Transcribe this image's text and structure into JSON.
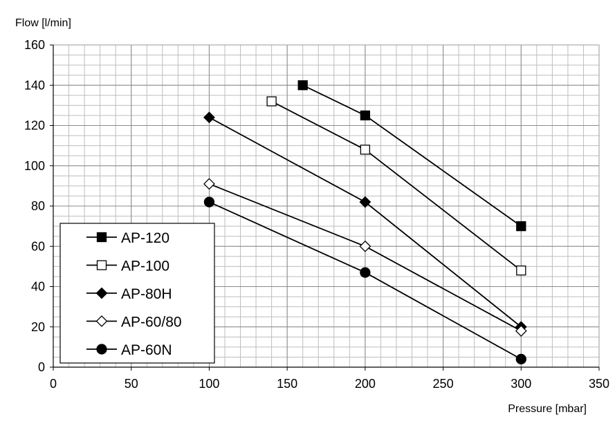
{
  "chart_data": {
    "type": "line",
    "title": "",
    "xlabel": "Pressure [mbar]",
    "ylabel": "Flow [l/min]",
    "xlim": [
      0,
      350
    ],
    "ylim": [
      0,
      160
    ],
    "x_ticks": [
      0,
      50,
      100,
      150,
      200,
      250,
      300,
      350
    ],
    "y_ticks": [
      0,
      20,
      40,
      60,
      80,
      100,
      120,
      140,
      160
    ],
    "x_tick_labels": [
      "0",
      "50",
      "100",
      "150",
      "200",
      "250",
      "300",
      "350"
    ],
    "y_tick_labels": [
      "0",
      "20",
      "40",
      "60",
      "80",
      "100",
      "120",
      "140",
      "160"
    ],
    "minor_grid_step_x": 10,
    "minor_grid_step_y": 5,
    "grid": true,
    "legend_position": "bottom-left",
    "series": [
      {
        "name": "AP-120",
        "marker": "square-filled",
        "x": [
          160,
          200,
          300
        ],
        "y": [
          140,
          125,
          70
        ]
      },
      {
        "name": "AP-100",
        "marker": "square-open",
        "x": [
          140,
          200,
          300
        ],
        "y": [
          132,
          108,
          48
        ]
      },
      {
        "name": "AP-80H",
        "marker": "diamond-filled",
        "x": [
          100,
          200,
          300
        ],
        "y": [
          124,
          82,
          20
        ]
      },
      {
        "name": "AP-60/80",
        "marker": "diamond-open",
        "x": [
          100,
          200,
          300
        ],
        "y": [
          91,
          60,
          18
        ]
      },
      {
        "name": "AP-60N",
        "marker": "circle-filled",
        "x": [
          100,
          200,
          300
        ],
        "y": [
          82,
          47,
          4
        ]
      }
    ]
  },
  "colors": {
    "line": "#000000",
    "grid": "#bdbdbd",
    "background": "#ffffff"
  }
}
